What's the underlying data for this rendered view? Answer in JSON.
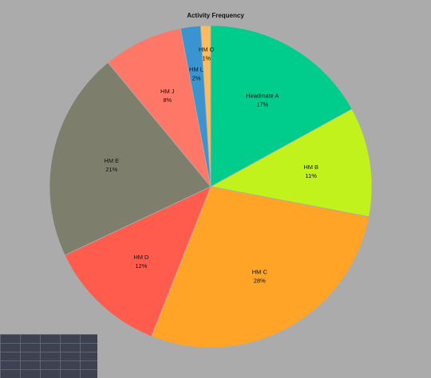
{
  "chart_data": {
    "type": "pie",
    "title": "Activity Frequency",
    "slices": [
      {
        "label": "Headmate A",
        "value": 17,
        "percent_label": "17%",
        "color": "#00cc8b"
      },
      {
        "label": "HM B",
        "value": 11,
        "percent_label": "11%",
        "color": "#c2f21c"
      },
      {
        "label": "HM C",
        "value": 28,
        "percent_label": "28%",
        "color": "#ffa426"
      },
      {
        "label": "HM D",
        "value": 12,
        "percent_label": "12%",
        "color": "#ff5c4d"
      },
      {
        "label": "HM E",
        "value": 21,
        "percent_label": "21%",
        "color": "#7d7f6c"
      },
      {
        "label": "HM J",
        "value": 8,
        "percent_label": "8%",
        "color": "#ff7766"
      },
      {
        "label": "HM L",
        "value": 2,
        "percent_label": "2%",
        "color": "#3a94cf"
      },
      {
        "label": "HM O",
        "value": 1,
        "percent_label": "1%",
        "color": "#ffbb5e"
      }
    ],
    "start": "top",
    "direction": "clockwise",
    "legend": "none"
  }
}
